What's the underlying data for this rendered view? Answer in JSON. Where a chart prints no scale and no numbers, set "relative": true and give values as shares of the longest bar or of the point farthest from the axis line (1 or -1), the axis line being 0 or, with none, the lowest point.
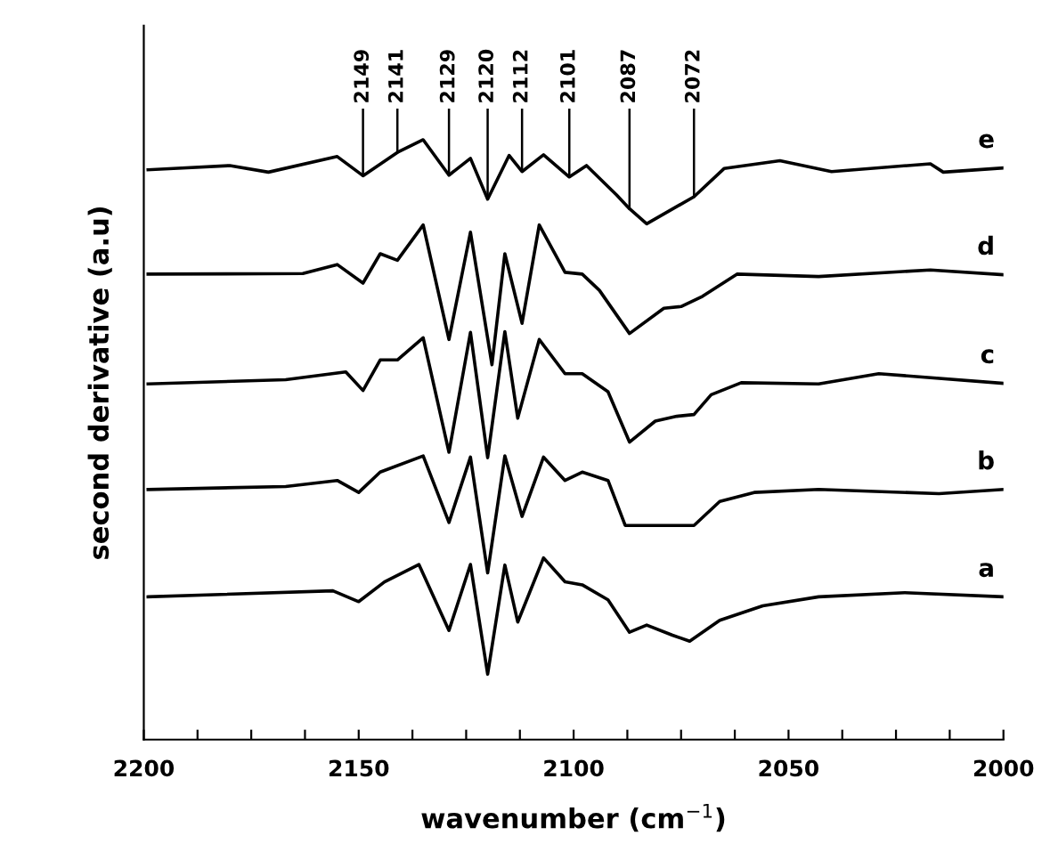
{
  "chart_data": {
    "type": "line",
    "relative": true,
    "xlabel": "wavenumber (cm$^{−1}$)",
    "ylabel": "second derivative (a.u)",
    "xlim": [
      2200,
      2000
    ],
    "xticks": [
      2200,
      {
        "value": 2187.5,
        "label": null
      },
      {
        "value": 2175,
        "label": null
      },
      {
        "value": 2162.5,
        "label": null
      },
      2150,
      {
        "value": 2137.5,
        "label": null
      },
      {
        "value": 2125,
        "label": null
      },
      {
        "value": 2112.5,
        "label": null
      },
      2100,
      {
        "value": 2087.5,
        "label": null
      },
      {
        "value": 2075,
        "label": null
      },
      {
        "value": 2062.5,
        "label": null
      },
      2050,
      {
        "value": 2037.5,
        "label": null
      },
      {
        "value": 2025,
        "label": null
      },
      {
        "value": 2012.5,
        "label": null
      },
      2000
    ],
    "grid": false,
    "legend": false,
    "marker": "none",
    "line_style": "solid",
    "tick_labels": "x",
    "series": [
      {
        "name": "e",
        "color": "#000000",
        "x": [
          2199,
          2180,
          2171,
          2155,
          2149,
          2141,
          2135,
          2129,
          2124,
          2120,
          2115,
          2112,
          2107,
          2101,
          2097,
          2090,
          2087,
          2083,
          2072,
          2065,
          2052,
          2040,
          2017,
          2014,
          2000
        ],
        "values": [
          0.95,
          0.957,
          0.946,
          0.972,
          0.94,
          0.979,
          1.0,
          0.941,
          0.969,
          0.901,
          0.974,
          0.947,
          0.975,
          0.938,
          0.957,
          0.908,
          0.885,
          0.86,
          0.905,
          0.952,
          0.965,
          0.947,
          0.96,
          0.946,
          0.953
        ]
      },
      {
        "name": "d",
        "color": "#000000",
        "x": [
          2199,
          2163,
          2155,
          2149,
          2145,
          2141,
          2135,
          2129,
          2124,
          2119,
          2116,
          2112,
          2108,
          2102,
          2098,
          2094,
          2087,
          2079,
          2075,
          2070,
          2062,
          2043,
          2017,
          2000
        ],
        "values": [
          0.776,
          0.777,
          0.792,
          0.761,
          0.81,
          0.799,
          0.858,
          0.667,
          0.846,
          0.625,
          0.81,
          0.694,
          0.858,
          0.779,
          0.776,
          0.749,
          0.677,
          0.719,
          0.722,
          0.739,
          0.776,
          0.772,
          0.783,
          0.775
        ]
      },
      {
        "name": "c",
        "color": "#000000",
        "x": [
          2199,
          2167,
          2153,
          2149,
          2145,
          2141,
          2135,
          2129,
          2124,
          2120,
          2116,
          2113,
          2108,
          2102,
          2098,
          2092,
          2087,
          2081,
          2076,
          2072,
          2068,
          2061,
          2043,
          2029,
          2000
        ],
        "values": [
          0.593,
          0.6,
          0.613,
          0.582,
          0.633,
          0.633,
          0.67,
          0.479,
          0.679,
          0.47,
          0.68,
          0.536,
          0.667,
          0.61,
          0.61,
          0.58,
          0.496,
          0.531,
          0.539,
          0.542,
          0.575,
          0.595,
          0.593,
          0.61,
          0.594
        ]
      },
      {
        "name": "b",
        "color": "#000000",
        "x": [
          2199,
          2167,
          2155,
          2150,
          2145,
          2135,
          2129,
          2124,
          2120,
          2116,
          2112,
          2107,
          2102,
          2098,
          2092,
          2088,
          2080,
          2072,
          2066,
          2058,
          2043,
          2015,
          2000
        ],
        "values": [
          0.417,
          0.422,
          0.432,
          0.412,
          0.446,
          0.473,
          0.362,
          0.471,
          0.278,
          0.473,
          0.372,
          0.471,
          0.432,
          0.446,
          0.432,
          0.357,
          0.357,
          0.357,
          0.397,
          0.412,
          0.417,
          0.41,
          0.417
        ]
      },
      {
        "name": "a",
        "color": "#000000",
        "x": [
          2199,
          2156,
          2150,
          2144,
          2136,
          2129,
          2124,
          2120,
          2116,
          2113,
          2107,
          2102,
          2098,
          2092,
          2087,
          2083,
          2077,
          2073,
          2066,
          2056,
          2043,
          2023,
          2000
        ],
        "values": [
          0.238,
          0.248,
          0.23,
          0.263,
          0.292,
          0.182,
          0.292,
          0.109,
          0.291,
          0.196,
          0.303,
          0.263,
          0.258,
          0.233,
          0.179,
          0.191,
          0.174,
          0.164,
          0.199,
          0.223,
          0.238,
          0.245,
          0.238
        ]
      }
    ],
    "annotations": [
      {
        "text": "2149",
        "x": 2149,
        "y": 0.94
      },
      {
        "text": "2141",
        "x": 2141,
        "y": 0.979
      },
      {
        "text": "2129",
        "x": 2129,
        "y": 0.941
      },
      {
        "text": "2120",
        "x": 2120,
        "y": 0.901
      },
      {
        "text": "2112",
        "x": 2112,
        "y": 0.947
      },
      {
        "text": "2101",
        "x": 2101,
        "y": 0.938
      },
      {
        "text": "2087",
        "x": 2087,
        "y": 0.885
      },
      {
        "text": "2072",
        "x": 2072,
        "y": 0.905
      }
    ]
  }
}
